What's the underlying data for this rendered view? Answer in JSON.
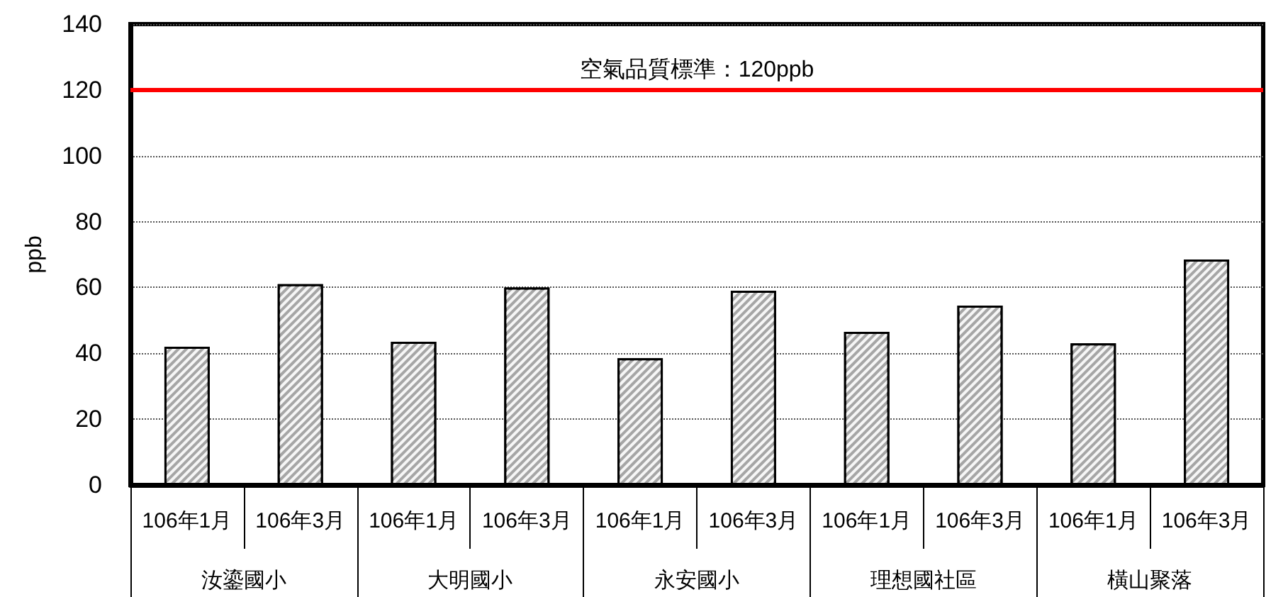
{
  "chart_data": {
    "type": "bar",
    "ylabel": "ppb",
    "categories": [
      "106年1月",
      "106年3月",
      "106年1月",
      "106年3月",
      "106年1月",
      "106年3月",
      "106年1月",
      "106年3月",
      "106年1月",
      "106年3月"
    ],
    "values": [
      42,
      61,
      43.5,
      60,
      38.5,
      59,
      46.5,
      54.5,
      43,
      68.5
    ],
    "color": "#a6a6a6",
    "ylim": [
      0,
      140
    ],
    "yticks": [
      0,
      20,
      40,
      60,
      80,
      100,
      120,
      140
    ],
    "grid": "y",
    "ref_lines": [
      {
        "axis": "y",
        "value": 120,
        "label": "空氣品質標準：120ppb",
        "color": "#ff0000"
      }
    ],
    "annotations": [
      "汝鎏國小",
      "大明國小",
      "永安國小",
      "理想國社區",
      "橫山聚落"
    ]
  }
}
